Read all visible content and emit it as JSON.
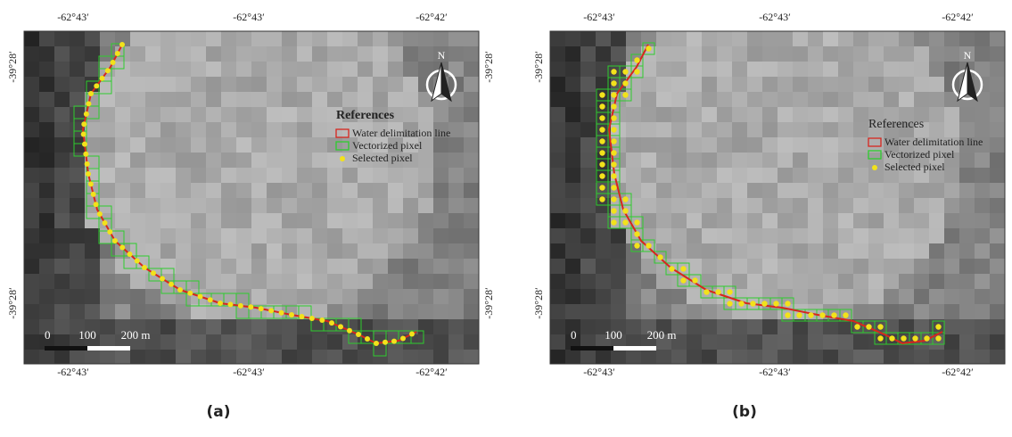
{
  "panels": [
    {
      "caption": "(a)",
      "top_labels": [
        "-62°43′",
        "-62°43′",
        "-62°42′"
      ],
      "bottom_labels": [
        "-62°43′",
        "-62°43′",
        "-62°42′"
      ],
      "left_labels": [
        "-39°28′",
        "-39°28′"
      ],
      "right_labels": [
        "-39°28′",
        "-39°28′"
      ],
      "north": "N",
      "scale_labels": [
        "0",
        "100",
        "200 m"
      ],
      "legend": {
        "title": "References",
        "items": [
          "Water delimitation line",
          "Vectorized pixel",
          "Selected pixel"
        ]
      }
    },
    {
      "caption": "(b)",
      "top_labels": [
        "-62°43′",
        "-62°43′",
        "-62°42′"
      ],
      "bottom_labels": [
        "-62°43′",
        "-62°43′",
        "-62°42′"
      ],
      "left_labels": [
        "-39°28′",
        "-39°28′"
      ],
      "north": "N",
      "scale_labels": [
        "0",
        "100",
        "200 m"
      ],
      "legend": {
        "title": "References",
        "items": [
          "Water delimitation line",
          "Vectorized pixel",
          "Selected pixel"
        ]
      }
    }
  ]
}
